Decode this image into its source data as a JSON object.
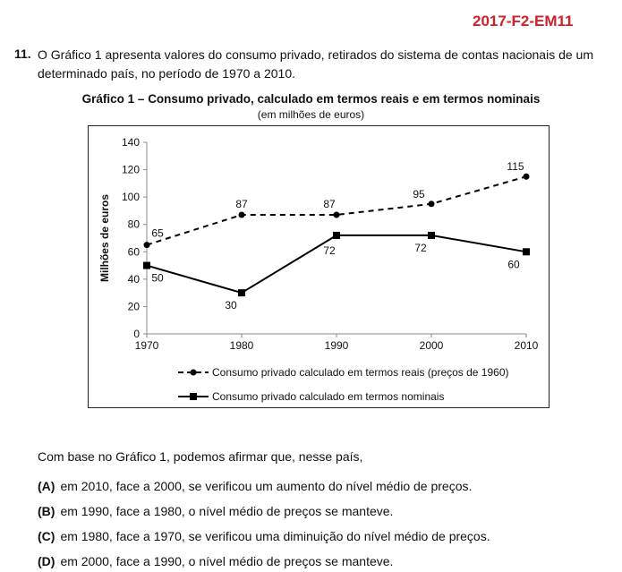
{
  "header": {
    "code": "2017-F2-EM11"
  },
  "question": {
    "number": "11.",
    "text": "O Gráfico 1 apresenta valores do consumo privado, retirados do sistema de contas nacionais de um determinado país, no período de 1970 a 2010."
  },
  "chart_data": {
    "type": "line",
    "title": "Gráfico 1 – Consumo privado, calculado em termos reais e em termos nominais",
    "subtitle": "(em milhões de euros)",
    "ylabel": "Milhões de euros",
    "xlabel": "",
    "x": [
      1970,
      1980,
      1990,
      2000,
      2010
    ],
    "ylim": [
      0,
      140
    ],
    "yticks": [
      0,
      20,
      40,
      60,
      80,
      100,
      120,
      140
    ],
    "grid": false,
    "legend_position": "bottom",
    "series": [
      {
        "name": "Consumo privado calculado em termos reais (preços de 1960)",
        "values": [
          65,
          87,
          87,
          95,
          115
        ],
        "style": "dashed",
        "marker": "circle",
        "color": "#000000"
      },
      {
        "name": "Consumo privado calculado em termos nominais",
        "values": [
          50,
          30,
          72,
          72,
          60
        ],
        "style": "solid",
        "marker": "square",
        "color": "#000000"
      }
    ]
  },
  "stem": "Com base no Gráfico 1, podemos afirmar que, nesse país,",
  "options": [
    {
      "letter": "(A)",
      "text": "em 2010, face a 2000, se verificou um aumento do nível médio de preços."
    },
    {
      "letter": "(B)",
      "text": "em 1990, face a 1980, o nível médio de preços se manteve."
    },
    {
      "letter": "(C)",
      "text": "em 1980, face a 1970, se verificou uma diminuição do nível médio de preços."
    },
    {
      "letter": "(D)",
      "text": "em 2000, face a 1990, o nível médio de preços se manteve."
    }
  ]
}
